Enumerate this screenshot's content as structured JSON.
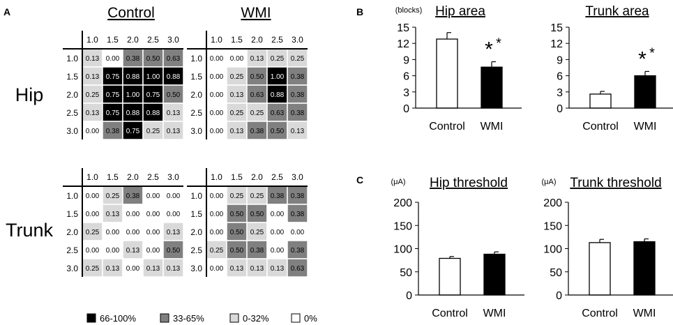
{
  "panel_labels": {
    "a": "A",
    "b": "B",
    "c": "C"
  },
  "group_titles": {
    "control": "Control",
    "wmi": "WMI"
  },
  "row_titles": {
    "hip": "Hip",
    "trunk": "Trunk"
  },
  "legend": [
    {
      "label": "66-100%",
      "color": "#000000"
    },
    {
      "label": "33-65%",
      "color": "#808080"
    },
    {
      "label": "0-32%",
      "color": "#d9d9d9"
    },
    {
      "label": "0%",
      "color": "#ffffff"
    }
  ],
  "chart_data": [
    {
      "type": "heatmap",
      "title": "Control",
      "row_title": "Hip",
      "x_labels": [
        "1.0",
        "1.5",
        "2.0",
        "2.5",
        "3.0"
      ],
      "y_labels": [
        "1.0",
        "1.5",
        "2.0",
        "2.5",
        "3.0"
      ],
      "values": [
        [
          0.13,
          0.0,
          0.38,
          0.5,
          0.63
        ],
        [
          0.13,
          0.75,
          0.88,
          1.0,
          0.88
        ],
        [
          0.25,
          0.75,
          1.0,
          0.75,
          0.5
        ],
        [
          0.13,
          0.75,
          0.88,
          0.88,
          0.13
        ],
        [
          0.0,
          0.38,
          0.75,
          0.25,
          0.13
        ]
      ]
    },
    {
      "type": "heatmap",
      "title": "WMI",
      "row_title": "Hip",
      "x_labels": [
        "1.0",
        "1.5",
        "2.0",
        "2.5",
        "3.0"
      ],
      "y_labels": [
        "1.0",
        "1.5",
        "2.0",
        "2.5",
        "3.0"
      ],
      "values": [
        [
          0.0,
          0.0,
          0.13,
          0.25,
          0.25
        ],
        [
          0.0,
          0.25,
          0.5,
          1.0,
          0.38
        ],
        [
          0.0,
          0.13,
          0.63,
          0.88,
          0.38
        ],
        [
          0.0,
          0.25,
          0.25,
          0.63,
          0.38
        ],
        [
          0.0,
          0.13,
          0.38,
          0.5,
          0.13
        ]
      ]
    },
    {
      "type": "heatmap",
      "title": "Control",
      "row_title": "Trunk",
      "x_labels": [
        "1.0",
        "1.5",
        "2.0",
        "2.5",
        "3.0"
      ],
      "y_labels": [
        "1.0",
        "1.5",
        "2.0",
        "2.5",
        "3.0"
      ],
      "values": [
        [
          0.0,
          0.25,
          0.38,
          0.0,
          0.0
        ],
        [
          0.0,
          0.13,
          0.0,
          0.0,
          0.0
        ],
        [
          0.25,
          0.0,
          0.0,
          0.0,
          0.13
        ],
        [
          0.0,
          0.0,
          0.13,
          0.0,
          0.5
        ],
        [
          0.25,
          0.13,
          0.0,
          0.13,
          0.13
        ]
      ]
    },
    {
      "type": "heatmap",
      "title": "WMI",
      "row_title": "Trunk",
      "x_labels": [
        "1.0",
        "1.5",
        "2.0",
        "2.5",
        "3.0"
      ],
      "y_labels": [
        "1.0",
        "1.5",
        "2.0",
        "2.5",
        "3.0"
      ],
      "values": [
        [
          0.0,
          0.25,
          0.25,
          0.38,
          0.38
        ],
        [
          0.0,
          0.5,
          0.5,
          0.0,
          0.38
        ],
        [
          0.0,
          0.5,
          0.25,
          0.0,
          0.0
        ],
        [
          0.25,
          0.5,
          0.38,
          0.0,
          0.38
        ],
        [
          0.0,
          0.13,
          0.13,
          0.13,
          0.63
        ]
      ]
    },
    {
      "type": "bar",
      "title": "Hip area",
      "unit_label": "(blocks)",
      "categories": [
        "Control",
        "WMI"
      ],
      "values": [
        12.8,
        7.6
      ],
      "errors": [
        1.2,
        1.0
      ],
      "fills": [
        "#ffffff",
        "#000000"
      ],
      "significance": [
        "",
        "*"
      ],
      "significance_sup": [
        "",
        "*"
      ],
      "yticks": [
        "0",
        "3",
        "6",
        "9",
        "12",
        "15"
      ],
      "ylim": [
        0,
        15
      ]
    },
    {
      "type": "bar",
      "title": "Trunk area",
      "unit_label": "",
      "categories": [
        "Control",
        "WMI"
      ],
      "values": [
        2.6,
        6.0
      ],
      "errors": [
        0.5,
        0.8
      ],
      "fills": [
        "#ffffff",
        "#000000"
      ],
      "significance": [
        "",
        "*"
      ],
      "significance_sup": [
        "",
        "*"
      ],
      "yticks": [
        "0",
        "3",
        "6",
        "9",
        "12",
        "15"
      ],
      "ylim": [
        0,
        15
      ]
    },
    {
      "type": "bar",
      "title": "Hip threshold",
      "unit_label": "(μA)",
      "categories": [
        "Control",
        "WMI"
      ],
      "values": [
        79,
        88
      ],
      "errors": [
        4,
        5
      ],
      "fills": [
        "#ffffff",
        "#000000"
      ],
      "significance": [
        "",
        ""
      ],
      "significance_sup": [
        "",
        ""
      ],
      "yticks": [
        "0",
        "50",
        "100",
        "150",
        "200"
      ],
      "ylim": [
        0,
        200
      ]
    },
    {
      "type": "bar",
      "title": "Trunk threshold",
      "unit_label": "(μA)",
      "categories": [
        "Control",
        "WMI"
      ],
      "values": [
        113,
        115
      ],
      "errors": [
        7,
        6
      ],
      "fills": [
        "#ffffff",
        "#000000"
      ],
      "significance": [
        "",
        ""
      ],
      "significance_sup": [
        "",
        ""
      ],
      "yticks": [
        "0",
        "50",
        "100",
        "150",
        "200"
      ],
      "ylim": [
        0,
        200
      ]
    }
  ]
}
